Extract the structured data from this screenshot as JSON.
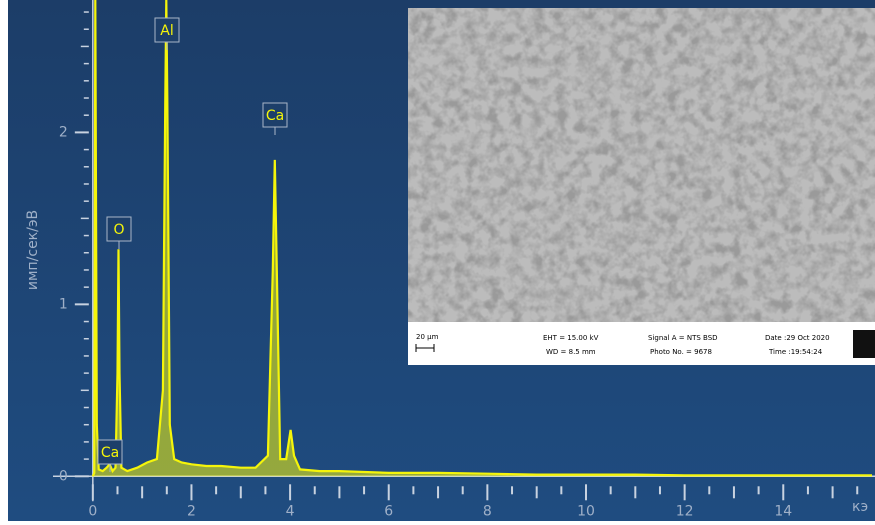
{
  "chart_data": {
    "type": "line",
    "y_label": "имп/сек/эВ",
    "x_label": "кэ",
    "color": "#f5f50a",
    "xlim": [
      -1.72,
      15.86
    ],
    "ylim": [
      -0.26,
      2.77
    ],
    "xticks": [
      0,
      2,
      4,
      6,
      8,
      10,
      12,
      14
    ],
    "yticks": [
      0,
      1,
      2
    ],
    "x": [
      0,
      0.03,
      0.05,
      0.08,
      0.12,
      0.2,
      0.28,
      0.34,
      0.4,
      0.46,
      0.5,
      0.52,
      0.54,
      0.58,
      0.7,
      0.9,
      1.1,
      1.3,
      1.42,
      1.47,
      1.49,
      1.51,
      1.56,
      1.65,
      1.8,
      2.0,
      2.3,
      2.6,
      3.0,
      3.3,
      3.55,
      3.65,
      3.69,
      3.73,
      3.8,
      3.92,
      4.01,
      4.08,
      4.2,
      4.6,
      5.0,
      6.0,
      7.0,
      8.0,
      9.0,
      10.0,
      11.0,
      12.0,
      13.0,
      14.0,
      15.0,
      15.8
    ],
    "values": [
      0,
      0.02,
      2.77,
      0.3,
      0.04,
      0.03,
      0.05,
      0.07,
      0.03,
      0.05,
      0.6,
      1.32,
      0.6,
      0.05,
      0.03,
      0.05,
      0.08,
      0.1,
      0.5,
      2.2,
      2.77,
      2.2,
      0.3,
      0.1,
      0.08,
      0.07,
      0.06,
      0.06,
      0.05,
      0.05,
      0.12,
      1.2,
      1.84,
      1.2,
      0.1,
      0.1,
      0.27,
      0.12,
      0.04,
      0.03,
      0.03,
      0.02,
      0.02,
      0.015,
      0.01,
      0.01,
      0.01,
      0.005,
      0.005,
      0.005,
      0.005,
      0.005
    ],
    "annotations": [
      "Ca",
      "O",
      "Al",
      "Ca"
    ]
  },
  "inset": {
    "scale_bar": "20 µm",
    "eht": "EHT = 15.00 kV",
    "wd": "WD =  8.5 mm",
    "signal": "Signal A = NTS BSD",
    "photo": "Photo No. = 9678",
    "date": "Date :29 Oct 2020",
    "time": "Time :19:54:24"
  }
}
